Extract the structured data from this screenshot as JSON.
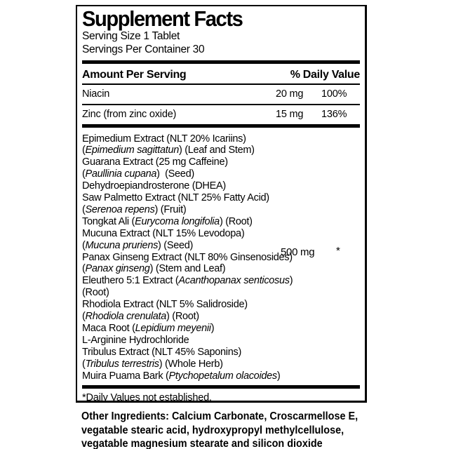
{
  "label": {
    "title": "Supplement Facts",
    "serving_size": "Serving Size 1 Tablet",
    "servings_per_container": "Servings Per Container 30",
    "columns": {
      "amount_header": "Amount Per Serving",
      "daily_value_header": "% Daily Value"
    },
    "nutrients": [
      {
        "name": "Niacin",
        "amount": "20 mg",
        "daily_value": "100%"
      },
      {
        "name": "Zinc (from zinc oxide)",
        "amount": "15 mg",
        "daily_value": "136%"
      }
    ],
    "proprietary_blend": {
      "amount": "500 mg",
      "daily_value": "*",
      "ingredient_lines": [
        [
          {
            "t": "Epimedium Extract (NLT 20% Icariins)",
            "i": false
          }
        ],
        [
          {
            "t": "(",
            "i": false
          },
          {
            "t": "Epimedium sagittatun",
            "i": true
          },
          {
            "t": ") (Leaf and Stem)",
            "i": false
          }
        ],
        [
          {
            "t": "Guarana Extract (25 mg Caffeine)",
            "i": false
          }
        ],
        [
          {
            "t": "(",
            "i": false
          },
          {
            "t": "Paullinia cupana",
            "i": true
          },
          {
            "t": ")  (Seed)",
            "i": false
          }
        ],
        [
          {
            "t": "Dehydroepiandrosterone (DHEA)",
            "i": false
          }
        ],
        [
          {
            "t": "Saw Palmetto Extract (NLT 25% Fatty Acid)",
            "i": false
          }
        ],
        [
          {
            "t": "(",
            "i": false
          },
          {
            "t": "Serenoa repens",
            "i": true
          },
          {
            "t": ") (Fruit)",
            "i": false
          }
        ],
        [
          {
            "t": "Tongkat Ali (",
            "i": false
          },
          {
            "t": "Eurycoma longifolia",
            "i": true
          },
          {
            "t": ") (Root)",
            "i": false
          }
        ],
        [
          {
            "t": "Mucuna Extract (NLT 15% Levodopa)",
            "i": false
          }
        ],
        [
          {
            "t": "(",
            "i": false
          },
          {
            "t": "Mucuna pruriens",
            "i": true
          },
          {
            "t": ") (Seed)",
            "i": false
          }
        ],
        [
          {
            "t": "Panax Ginseng Extract (NLT 80% Ginsenosides)",
            "i": false
          }
        ],
        [
          {
            "t": "(",
            "i": false
          },
          {
            "t": "Panax ginseng",
            "i": true
          },
          {
            "t": ") (Stem and Leaf)",
            "i": false
          }
        ],
        [
          {
            "t": "Eleuthero 5:1 Extract (",
            "i": false
          },
          {
            "t": "Acanthopanax senticosus",
            "i": true
          },
          {
            "t": ")",
            "i": false
          }
        ],
        [
          {
            "t": "(Root)",
            "i": false
          }
        ],
        [
          {
            "t": "Rhodiola Extract (NLT 5% Salidroside)",
            "i": false
          }
        ],
        [
          {
            "t": "(",
            "i": false
          },
          {
            "t": "Rhodiola crenulata",
            "i": true
          },
          {
            "t": ") (Root)",
            "i": false
          }
        ],
        [
          {
            "t": "Maca Root (",
            "i": false
          },
          {
            "t": "Lepidium meyenii",
            "i": true
          },
          {
            "t": ")",
            "i": false
          }
        ],
        [
          {
            "t": "L-Arginine Hydrochloride",
            "i": false
          }
        ],
        [
          {
            "t": "Tribulus Extract (NLT 45% Saponins)",
            "i": false
          }
        ],
        [
          {
            "t": "(",
            "i": false
          },
          {
            "t": "Tribulus terrestris",
            "i": true
          },
          {
            "t": ") (Whole Herb)",
            "i": false
          }
        ],
        [
          {
            "t": "Muira Puama Bark (",
            "i": false
          },
          {
            "t": "Ptychopetalum olacoides",
            "i": true
          },
          {
            "t": ")",
            "i": false
          }
        ]
      ]
    },
    "footnote": "*Daily Values not established.",
    "colors": {
      "ink": "#000000",
      "background": "#ffffff"
    }
  },
  "other_ingredients": {
    "lines": [
      "Other Ingredients: Calcium Carbonate, Croscarmellose E,",
      "vegatable stearic acid, hydroxypropyl methylcellulose,",
      "vegatable magnesium stearate and silicon dioxide"
    ]
  }
}
